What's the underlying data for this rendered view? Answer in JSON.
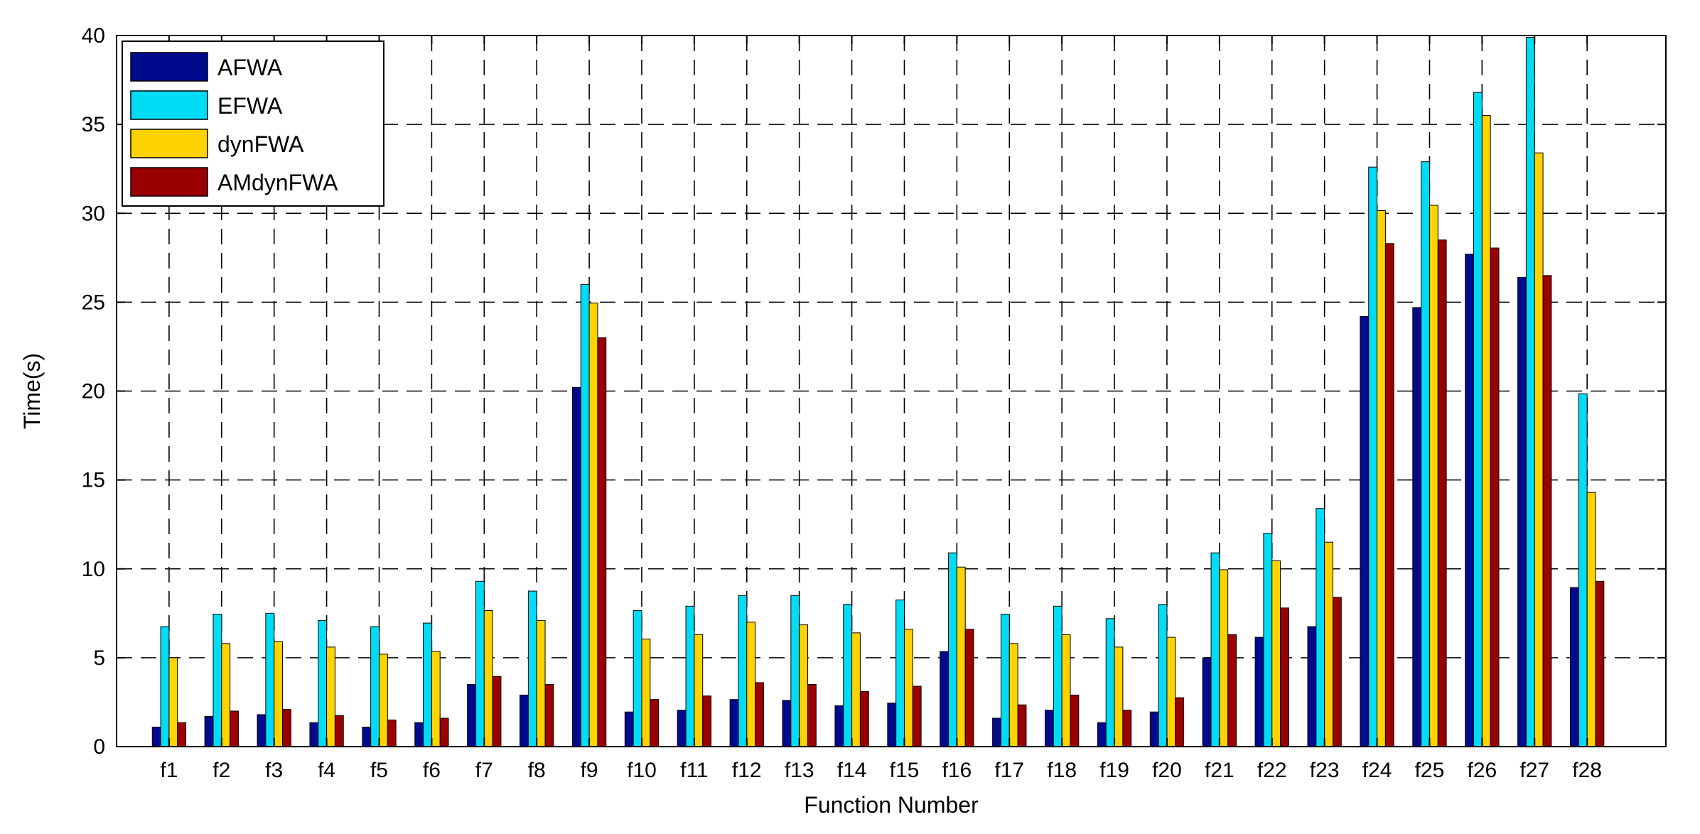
{
  "chart_data": {
    "type": "bar",
    "title": "",
    "xlabel": "Function Number",
    "ylabel": "Time(s)",
    "ylim": [
      0,
      40
    ],
    "yticks": [
      0,
      5,
      10,
      15,
      20,
      25,
      30,
      35,
      40
    ],
    "grid": true,
    "legend_position": "top-left",
    "categories": [
      "f1",
      "f2",
      "f3",
      "f4",
      "f5",
      "f6",
      "f7",
      "f8",
      "f9",
      "f10",
      "f11",
      "f12",
      "f13",
      "f14",
      "f15",
      "f16",
      "f17",
      "f18",
      "f19",
      "f20",
      "f21",
      "f22",
      "f23",
      "f24",
      "f25",
      "f26",
      "f27",
      "f28"
    ],
    "series": [
      {
        "name": "AFWA",
        "color": "#000a8c",
        "values": [
          1.1,
          1.7,
          1.8,
          1.35,
          1.1,
          1.35,
          3.5,
          2.9,
          20.2,
          1.95,
          2.05,
          2.65,
          2.6,
          2.3,
          2.45,
          5.35,
          1.6,
          2.05,
          1.35,
          1.95,
          5.0,
          6.15,
          6.75,
          24.2,
          24.7,
          27.7,
          26.4,
          8.95
        ]
      },
      {
        "name": "EFWA",
        "color": "#00dcf5",
        "values": [
          6.75,
          7.45,
          7.5,
          7.1,
          6.75,
          6.95,
          9.3,
          8.75,
          26.0,
          7.65,
          7.9,
          8.5,
          8.5,
          8.0,
          8.25,
          10.9,
          7.45,
          7.9,
          7.2,
          8.0,
          10.9,
          12.0,
          13.4,
          32.6,
          32.9,
          36.8,
          39.9,
          19.85
        ]
      },
      {
        "name": "dynFWA",
        "color": "#ffd200",
        "values": [
          5.0,
          5.8,
          5.9,
          5.6,
          5.2,
          5.35,
          7.65,
          7.1,
          24.95,
          6.05,
          6.3,
          7.0,
          6.85,
          6.4,
          6.6,
          10.1,
          5.8,
          6.3,
          5.6,
          6.15,
          9.95,
          10.45,
          11.5,
          30.15,
          30.45,
          35.5,
          33.4,
          14.3
        ]
      },
      {
        "name": "AMdynFWA",
        "color": "#9b0000",
        "values": [
          1.35,
          2.0,
          2.1,
          1.75,
          1.5,
          1.6,
          3.95,
          3.5,
          23.0,
          2.65,
          2.85,
          3.6,
          3.5,
          3.1,
          3.4,
          6.6,
          2.35,
          2.9,
          2.05,
          2.75,
          6.3,
          7.8,
          8.4,
          28.3,
          28.5,
          28.05,
          26.5,
          9.3
        ]
      }
    ]
  }
}
